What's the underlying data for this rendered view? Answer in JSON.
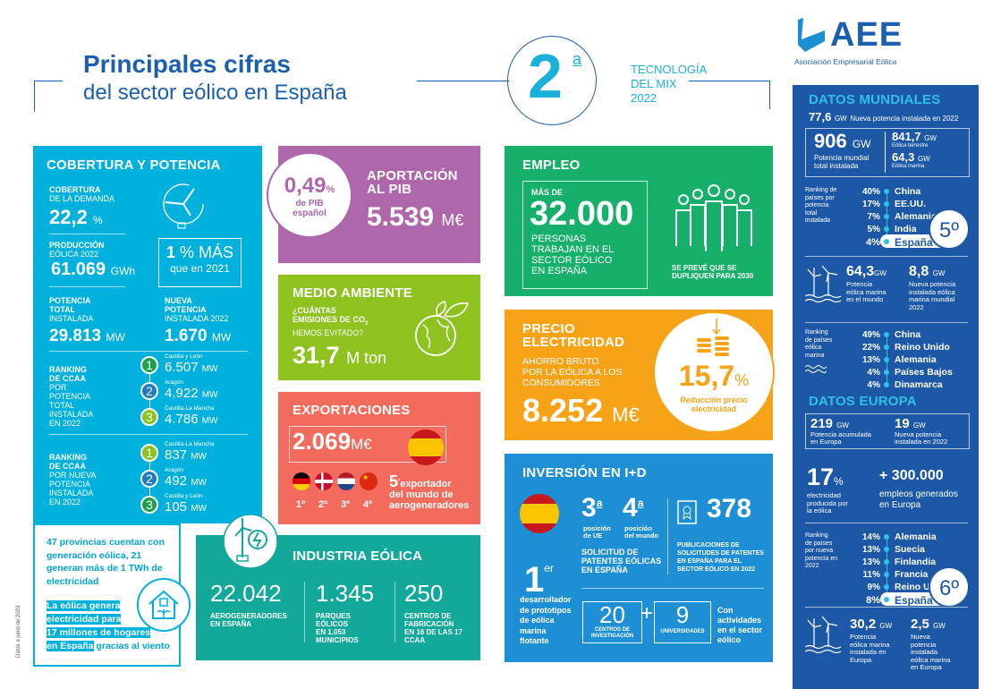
{
  "header": {
    "title_line1": "Principales cifras",
    "title_line2": "del sector eólico en España",
    "rank_number": "2",
    "rank_suffix": "a",
    "rank_text": [
      "TECNOLOGÍA",
      "DEL MIX",
      "2022"
    ],
    "logo_text": "AEE",
    "logo_subtitle": "Asociación Empresarial Eólica"
  },
  "colors": {
    "title_blue": "#1c5fb0",
    "cyan": "#00b1dd",
    "purple": "#ae67ab",
    "lime": "#8dc21f",
    "coral": "#f36b5c",
    "teal": "#12a99a",
    "green": "#16b06a",
    "orange": "#f7a317",
    "blue": "#1e8fd4",
    "navy": "#1d58a6"
  },
  "cobertura": {
    "title": "COBERTURA Y POTENCIA",
    "demanda_label1": "COBERTURA",
    "demanda_label2": "DE LA DEMANDA",
    "demanda_value": "22,2",
    "demanda_unit": "%",
    "prod_label1": "PRODUCCIÓN",
    "prod_label2": "EÓLICA 2022",
    "prod_value": "61.069",
    "prod_unit": "GWh",
    "mas_value": "1",
    "mas_text": "% MÁS",
    "mas_sub": "que en 2021",
    "total_label1": "POTENCIA",
    "total_label2": "TOTAL",
    "total_label3": "INSTALADA",
    "total_value": "29.813",
    "total_unit": "MW",
    "nueva_label1": "NUEVA",
    "nueva_label2": "POTENCIA",
    "nueva_label3": "INSTALADA 2022",
    "nueva_value": "1.670",
    "nueva_unit": "MW",
    "rank1_label": [
      "RANKING",
      "DE CCAA",
      "POR",
      "POTENCIA",
      "TOTAL",
      "INSTALADA",
      "EN 2022"
    ],
    "rank1": [
      {
        "n": "1",
        "region": "Castilla y León",
        "value": "6.507",
        "unit": "MW",
        "color": "#1fa04a"
      },
      {
        "n": "2",
        "region": "Aragón",
        "value": "4.922",
        "unit": "MW",
        "color": "#1f7ac0"
      },
      {
        "n": "3",
        "region": "Castilla-La Mancha",
        "value": "4.786",
        "unit": "MW",
        "color": "#8dc21f"
      }
    ],
    "rank2_label": [
      "RANKING",
      "DE CCAA",
      "POR NUEVA",
      "POTENCIA",
      "INSTALADA",
      "EN 2022"
    ],
    "rank2": [
      {
        "n": "1",
        "region": "Castilla-La Mancha",
        "value": "837",
        "unit": "MW",
        "color": "#8dc21f"
      },
      {
        "n": "2",
        "region": "Aragón",
        "value": "492",
        "unit": "MW",
        "color": "#1f7ac0"
      },
      {
        "n": "3",
        "region": "Castilla y León",
        "value": "105",
        "unit": "MW",
        "color": "#1fa04a"
      }
    ]
  },
  "provincias": {
    "text": "47 provincias cuentan con generación eólica, 21 generan más de 1 TWh de electricidad",
    "highlight": [
      "La eólica genera",
      "electricidad para",
      "17 millones de hogares",
      "en España"
    ],
    "tail": "gracias al viento"
  },
  "pib": {
    "title1": "APORTACIÓN",
    "title2": "AL PIB",
    "value": "5.539",
    "unit": "M€",
    "circle_value": "0,49",
    "circle_unit": "%",
    "circle_label1": "de PIB",
    "circle_label2": "español"
  },
  "medio": {
    "title": "MEDIO AMBIENTE",
    "q1": "¿CUÁNTAS",
    "q2": "EMISIONES DE CO",
    "q2_sub": "2",
    "q3": "HEMOS EVITADO?",
    "value": "31,7",
    "unit": "M ton"
  },
  "export": {
    "title": "EXPORTACIONES",
    "value": "2.069",
    "unit": "M€",
    "ranks": [
      "1º",
      "2º",
      "3º",
      "4º"
    ],
    "pos": "5",
    "pos_sup": "º",
    "pos_text1": "exportador",
    "pos_text2": "del mundo de",
    "pos_text3": "aerogeneradores"
  },
  "industria": {
    "title": "INDUSTRIA EÓLICA",
    "items": [
      {
        "value": "22.042",
        "label": [
          "AEROGENERADORES",
          "EN ESPAÑA"
        ]
      },
      {
        "value": "1.345",
        "label": [
          "PARQUES",
          "EÓLICOS",
          "EN 1.053",
          "MUNICIPIOS"
        ]
      },
      {
        "value": "250",
        "label": [
          "CENTROS DE",
          "FABRICACIÓN",
          "EN 16 DE LAS 17",
          "CCAA"
        ]
      }
    ]
  },
  "empleo": {
    "title": "EMPLEO",
    "pre": "MÁS DE",
    "value": "32.000",
    "desc": [
      "PERSONAS",
      "TRABAJAN EN EL",
      "SECTOR EÓLICO",
      "EN ESPAÑA"
    ],
    "note": [
      "SE PREVÉ QUE SE",
      "DUPLIQUEN PARA 2030"
    ]
  },
  "precio": {
    "title1": "PRECIO",
    "title2": "ELECTRICIDAD",
    "desc": [
      "AHORRO BRUTO",
      "POR LA EÓLICA A LOS",
      "CONSUMIDORES"
    ],
    "value": "8.252",
    "unit": "M€",
    "pct": "15,7",
    "pct_unit": "%",
    "pct_label1": "Reducción precio",
    "pct_label2": "electricidad"
  },
  "inversion": {
    "title": "INVERSIÓN EN I+D",
    "first": "1",
    "first_sup": "er",
    "first_desc": [
      "desarrollador",
      "de prototipos",
      "de eólica",
      "marina",
      "flotante"
    ],
    "ue": "3",
    "ue_sup": "a",
    "ue_label": [
      "posición",
      "de UE"
    ],
    "mundo": "4",
    "mundo_sup": "a",
    "mundo_label": [
      "posición",
      "del mundo"
    ],
    "patentes": [
      "SOLICITUD DE",
      "PATENTES EÓLICAS",
      "EN ESPAÑA"
    ],
    "pub_value": "378",
    "pub_label": [
      "PUBLICACIONES DE",
      "SOLICITUDES DE PATENTES",
      "EN ESPAÑA PARA EL",
      "SECTOR EÓLICO EN 2022"
    ],
    "centros": "20",
    "centros_label": [
      "CENTROS DE",
      "INVESTIGACIÓN"
    ],
    "plus": "+",
    "univ": "9",
    "univ_label": "UNIVERSIDADES",
    "con": [
      "Con",
      "actividades",
      "en el sector",
      "eólico"
    ]
  },
  "mundial": {
    "title": "DATOS MUNDIALES",
    "nueva_value": "77,6",
    "nueva_unit": "GW",
    "nueva_label": "Nueva potencia instalada en 2022",
    "total_value": "906",
    "total_unit": "GW",
    "total_label1": "Potencia mundial",
    "total_label2": "total instalada",
    "terrestre_value": "841,7",
    "terrestre_unit": "GW",
    "terrestre_label": "Eólica terrestre",
    "marina_value": "64,3",
    "marina_unit": "GW",
    "marina_label": "Eólica marina",
    "rank_label": [
      "Ranking de",
      "países por",
      "potencia",
      "total",
      "instalada"
    ],
    "ranking": [
      {
        "pct": "40%",
        "country": "China"
      },
      {
        "pct": "17%",
        "country": "EE.UU."
      },
      {
        "pct": "7%",
        "country": "Alemania"
      },
      {
        "pct": "5%",
        "country": "India"
      },
      {
        "pct": "4%",
        "country": "España"
      }
    ],
    "spain_pos": "5º",
    "offshore_value": "64,3",
    "offshore_unit": "GW",
    "offshore_label": [
      "Potencia",
      "eólica marina",
      "en el mundo"
    ],
    "offnew_value": "8,8",
    "offnew_unit": "GW",
    "offnew_label": [
      "Nueva potencia",
      "instalada eólica",
      "marina mundial",
      "2022"
    ],
    "marina_rank_label": [
      "Ranking",
      "de países",
      "eólica",
      "marina"
    ],
    "marina_ranking": [
      {
        "pct": "49%",
        "country": "China"
      },
      {
        "pct": "22%",
        "country": "Reino Unido"
      },
      {
        "pct": "13%",
        "country": "Alemania"
      },
      {
        "pct": "4%",
        "country": "Países Bajos"
      },
      {
        "pct": "4%",
        "country": "Dinamarca"
      }
    ]
  },
  "europa": {
    "title": "DATOS EUROPA",
    "acum_value": "219",
    "acum_unit": "GW",
    "acum_label": [
      "Potencia acumulada",
      "en Europa"
    ],
    "nueva_value": "19",
    "nueva_unit": "GW",
    "nueva_label": [
      "Nueva potencia",
      "instalada en 2022"
    ],
    "pct_value": "17",
    "pct_unit": "%",
    "pct_label": [
      "electricidad",
      "producida por",
      "la eólica"
    ],
    "empleos_value": "+ 300.000",
    "empleos_label": [
      "empleos generados",
      "en Europa"
    ],
    "rank_label": [
      "Ranking",
      "de países",
      "por nueva",
      "potencia en",
      "2022"
    ],
    "ranking": [
      {
        "pct": "14%",
        "country": "Alemania"
      },
      {
        "pct": "13%",
        "country": "Suecia"
      },
      {
        "pct": "13%",
        "country": "Finlandia"
      },
      {
        "pct": "11%",
        "country": "Francia"
      },
      {
        "pct": "9%",
        "country": "Reino Unido"
      },
      {
        "pct": "8%",
        "country": "España"
      }
    ],
    "spain_pos": "6º",
    "offshore_value": "30,2",
    "offshore_unit": "GW",
    "offshore_label": [
      "Potencia",
      "eólica marina",
      "instalada en",
      "Europa"
    ],
    "offnew_value": "2,5",
    "offnew_unit": "GW",
    "offnew_label": [
      "Nueva",
      "potencia",
      "instalada",
      "eólica marina",
      "en Europa"
    ]
  },
  "footnote": "Datos a junio de 2023"
}
